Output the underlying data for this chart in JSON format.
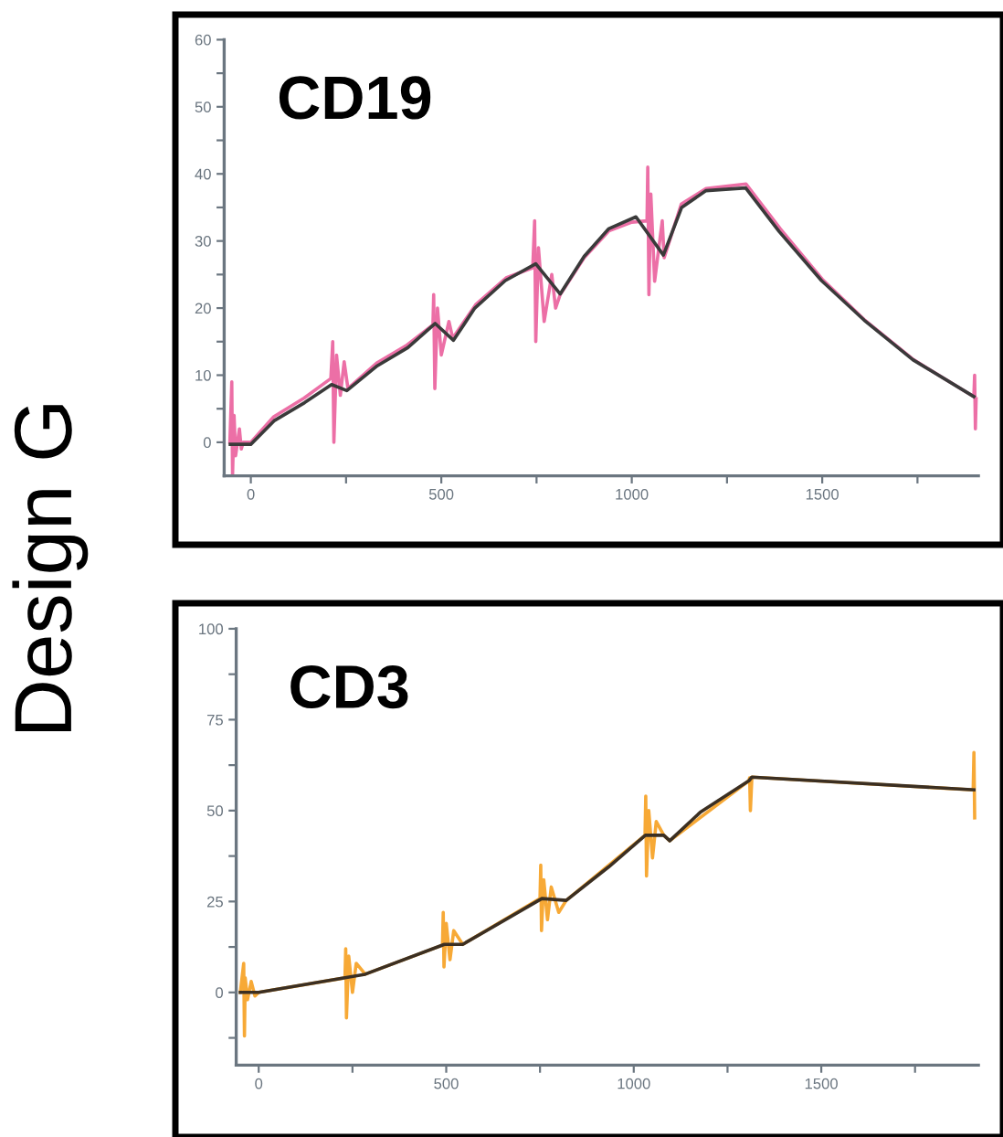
{
  "chart_data": [
    {
      "type": "line",
      "title": "CD19",
      "annotations": [
        "Design G"
      ],
      "xlim": [
        -70,
        1910
      ],
      "ylim": [
        -5,
        60
      ],
      "xticks": [
        0,
        {
          "value": 250,
          "label": null
        },
        500,
        {
          "value": 750,
          "label": null
        },
        1000,
        {
          "value": 1250,
          "label": null
        },
        1500,
        {
          "value": 1750,
          "label": null
        }
      ],
      "yticks": [
        0,
        {
          "value": 5,
          "label": null
        },
        10,
        {
          "value": 15,
          "label": null
        },
        20,
        {
          "value": 25,
          "label": null
        },
        30,
        {
          "value": 35,
          "label": null
        },
        40,
        {
          "value": 45,
          "label": null
        },
        50,
        {
          "value": 55,
          "label": null
        },
        60
      ],
      "grid": false,
      "series": [
        {
          "color": "#ec6fa6",
          "x": [
            -55,
            -50,
            -48,
            -44,
            -40,
            -30,
            -25,
            -20,
            0,
            60,
            140,
            210,
            215,
            218,
            225,
            235,
            245,
            255,
            330,
            410,
            478,
            480,
            483,
            490,
            500,
            520,
            530,
            590,
            670,
            740,
            745,
            748,
            755,
            770,
            790,
            800,
            812,
            875,
            940,
            1000,
            1040,
            1042,
            1045,
            1050,
            1060,
            1080,
            1085,
            1130,
            1195,
            1300,
            1390,
            1500,
            1610,
            1740,
            1898,
            1900,
            1902,
            1904
          ],
          "values": [
            0,
            9,
            -5,
            4,
            -2,
            2,
            -1,
            0,
            0,
            3.8,
            6.6,
            9.5,
            15,
            0,
            13,
            7,
            12,
            8,
            11.8,
            14.5,
            17.5,
            22,
            8,
            20,
            13,
            18,
            15.5,
            20.5,
            24.5,
            26,
            33,
            15,
            29,
            18,
            25,
            20,
            22,
            27.5,
            31.5,
            32.8,
            33,
            41,
            22,
            37,
            24,
            33,
            27.5,
            35.5,
            37.8,
            38.5,
            31.8,
            24.3,
            18.3,
            12.3,
            6.8,
            10,
            2,
            6.5
          ]
        },
        {
          "color": "#3a3a3a",
          "x": [
            -54,
            0,
            61,
            141,
            212,
            252,
            332,
            412,
            484,
            532,
            588,
            668,
            748,
            812,
            875,
            939,
            1011,
            1083,
            1131,
            1195,
            1299,
            1387,
            1498,
            1610,
            1738,
            1898
          ],
          "values": [
            -0.3,
            -0.3,
            3.2,
            5.9,
            8.6,
            7.7,
            11.4,
            14.1,
            17.7,
            15.2,
            20,
            24.1,
            26.6,
            22.1,
            27.7,
            31.8,
            33.6,
            27.9,
            35,
            37.5,
            37.9,
            31.4,
            24.1,
            18.2,
            12.3,
            6.8
          ]
        }
      ]
    },
    {
      "type": "line",
      "title": "CD3",
      "xlim": [
        -60,
        1919
      ],
      "ylim": [
        -20,
        100
      ],
      "xticks": [
        0,
        {
          "value": 250,
          "label": null
        },
        500,
        {
          "value": 750,
          "label": null
        },
        1000,
        {
          "value": 1250,
          "label": null
        },
        1500,
        {
          "value": 1750,
          "label": null
        }
      ],
      "yticks": [
        {
          "value": -12.5,
          "label": null
        },
        0,
        {
          "value": 12.5,
          "label": null
        },
        25,
        {
          "value": 37.5,
          "label": null
        },
        50,
        {
          "value": 62.5,
          "label": null
        },
        75,
        {
          "value": 87.5,
          "label": null
        },
        100
      ],
      "grid": false,
      "series": [
        {
          "color": "#f7a936",
          "x": [
            -49,
            -40,
            -38,
            -36,
            -30,
            -20,
            -10,
            0,
            230,
            232,
            234,
            240,
            250,
            260,
            284,
            490,
            492,
            494,
            500,
            510,
            520,
            544,
            750,
            752,
            754,
            760,
            770,
            780,
            800,
            820,
            1030,
            1032,
            1034,
            1040,
            1050,
            1060,
            1080,
            1096,
            1307,
            1309,
            1311,
            1315,
            1905,
            1907,
            1909
          ],
          "values": [
            0,
            8,
            -12,
            4,
            -2,
            3,
            -1,
            0,
            4,
            12,
            -7,
            10,
            0,
            8,
            5,
            13,
            22,
            7,
            19,
            9,
            17,
            13.2,
            25.8,
            35,
            17,
            31,
            20,
            29,
            22,
            25.3,
            43.2,
            54,
            32,
            50,
            37,
            47,
            43.2,
            41.7,
            58.2,
            59,
            50,
            59.2,
            55.7,
            66,
            48
          ]
        },
        {
          "color": "#3b2f22",
          "x": [
            -49,
            0,
            284,
            495,
            544,
            755,
            820,
            933,
            1031,
            1080,
            1096,
            1177,
            1307,
            1315,
            1907
          ],
          "values": [
            0,
            0,
            5,
            13.2,
            13.2,
            25.8,
            25.3,
            34.5,
            43.2,
            43.2,
            41.7,
            49.5,
            58.2,
            59.2,
            55.7
          ]
        }
      ]
    }
  ]
}
